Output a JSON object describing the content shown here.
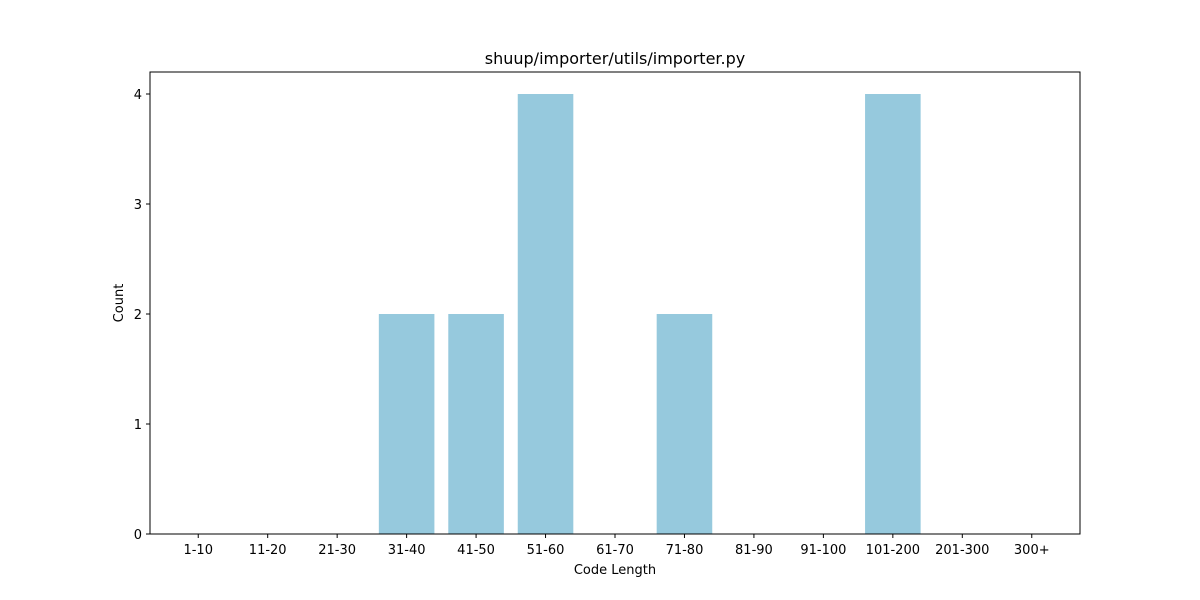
{
  "chart_data": {
    "type": "bar",
    "title": "shuup/importer/utils/importer.py",
    "xlabel": "Code Length",
    "ylabel": "Count",
    "categories": [
      "1-10",
      "11-20",
      "21-30",
      "31-40",
      "41-50",
      "51-60",
      "61-70",
      "71-80",
      "81-90",
      "91-100",
      "101-200",
      "201-300",
      "300+"
    ],
    "values": [
      0,
      0,
      0,
      2,
      2,
      4,
      0,
      2,
      0,
      0,
      4,
      0,
      0
    ],
    "ylim": [
      0,
      4.2
    ],
    "yticks": [
      0,
      1,
      2,
      3,
      4
    ],
    "bar_color": "#96c9dd",
    "grid": false,
    "legend": "none"
  }
}
